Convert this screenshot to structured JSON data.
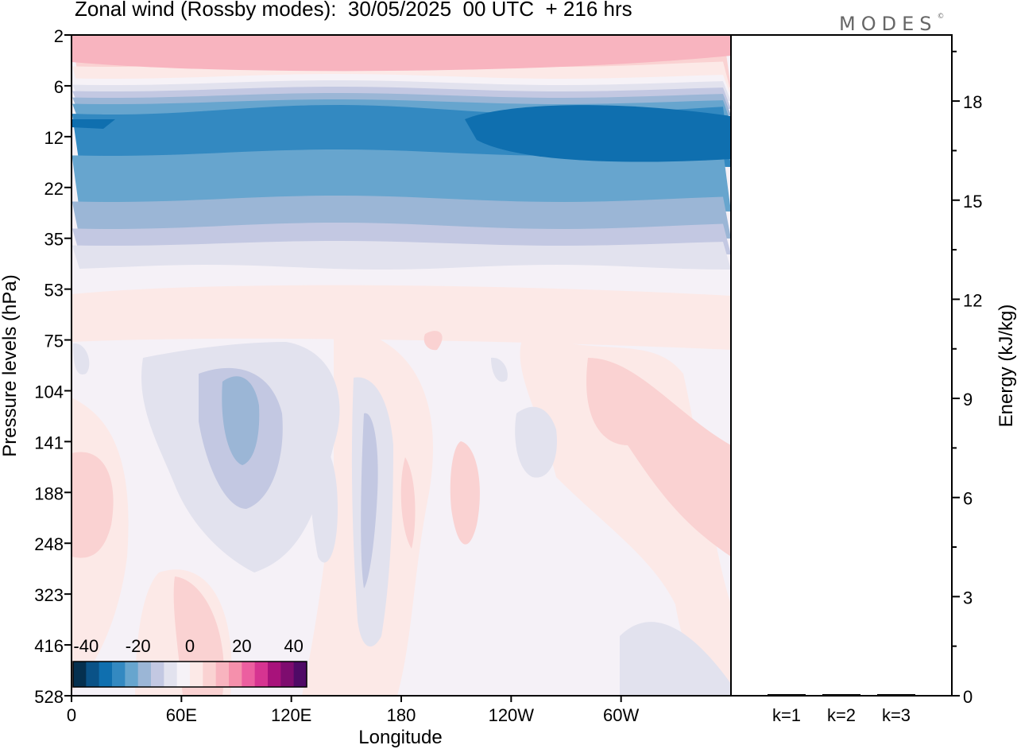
{
  "title": "Zonal wind (Rossby modes):  30/05/2025  00 UTC  + 216 hrs",
  "brand": "MODES",
  "brand_mark": "©",
  "chart_data": [
    {
      "type": "heatmap",
      "title": "Zonal wind (Rossby modes):  30/05/2025  00 UTC  + 216 hrs",
      "xlabel": "Longitude",
      "ylabel": "Pressure levels (hPa)",
      "x_ticks": [
        "0",
        "60E",
        "120E",
        "180",
        "120W",
        "60W"
      ],
      "x_range": [
        0,
        360
      ],
      "y_ticks": [
        2,
        6,
        12,
        22,
        35,
        53,
        75,
        104,
        141,
        188,
        248,
        323,
        416,
        528
      ],
      "y_scale": "level-index",
      "colorbar": {
        "tick_labels": [
          "-40",
          "-20",
          "0",
          "20",
          "40"
        ],
        "range": [
          -45,
          45
        ],
        "colors": [
          "#05304f",
          "#0a5287",
          "#0f6faf",
          "#3389c1",
          "#67a5ce",
          "#9bb6d6",
          "#c3c8e2",
          "#e2e2ee",
          "#f6f2f7",
          "#fce9e7",
          "#fad2d2",
          "#f8b4bf",
          "#f590ac",
          "#ec5fa0",
          "#d63491",
          "#a8127b",
          "#7e0c6f",
          "#4f0a66"
        ]
      }
    },
    {
      "type": "bar",
      "ylabel": "Energy (kJ/kg)",
      "categories": [
        "k=1",
        "k=2",
        "k=3"
      ],
      "values": [
        0.01,
        0.005,
        0.005
      ],
      "ylim": [
        0,
        20
      ],
      "y_ticks": [
        "0",
        "3",
        "6",
        "9",
        "12",
        "15",
        "18"
      ]
    }
  ]
}
